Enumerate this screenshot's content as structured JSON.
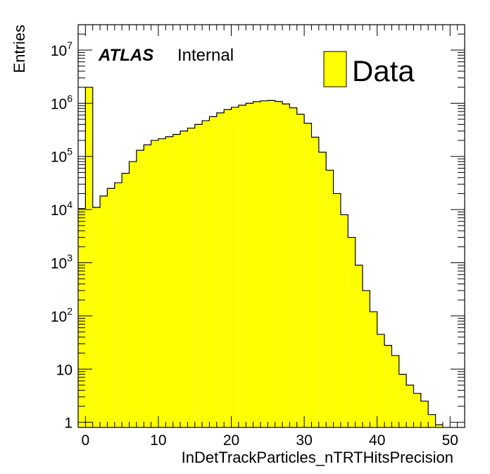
{
  "chart_data": {
    "type": "bar",
    "xlabel": "InDetTrackParticles_nTRTHitsPrecision",
    "ylabel": "Entries",
    "xlim": [
      -1,
      52
    ],
    "ylim": [
      0.8,
      30000000
    ],
    "yscale": "log",
    "grid": false,
    "x_ticks": [
      0,
      10,
      20,
      30,
      40,
      50
    ],
    "y_ticks": [
      1,
      10,
      100,
      1000,
      10000,
      100000,
      1000000,
      10000000
    ],
    "y_tick_labels": [
      {
        "base": "1",
        "exp": ""
      },
      {
        "base": "10",
        "exp": ""
      },
      {
        "base": "10",
        "exp": "2"
      },
      {
        "base": "10",
        "exp": "3"
      },
      {
        "base": "10",
        "exp": "4"
      },
      {
        "base": "10",
        "exp": "5"
      },
      {
        "base": "10",
        "exp": "6"
      },
      {
        "base": "10",
        "exp": "7"
      }
    ],
    "bin_width": 1,
    "bin_start": -1,
    "values": [
      10500,
      2000000,
      11000,
      18000,
      25000,
      32000,
      48000,
      80000,
      130000,
      165000,
      200000,
      215000,
      235000,
      260000,
      300000,
      340000,
      400000,
      470000,
      560000,
      660000,
      760000,
      840000,
      920000,
      1000000,
      1070000,
      1110000,
      1130000,
      1080000,
      970000,
      820000,
      620000,
      420000,
      230000,
      120000,
      55000,
      20000,
      8000,
      3000,
      900,
      300,
      120,
      45,
      28,
      18,
      8,
      5,
      3.5,
      2.5,
      1.4,
      0.9
    ],
    "legend": {
      "position": "top-right",
      "entries": [
        {
          "name": "Data",
          "color": "#ffff00"
        }
      ]
    },
    "fill_color": "#ffff00",
    "annotation": {
      "bold": "ATLAS",
      "text": "Internal"
    }
  }
}
